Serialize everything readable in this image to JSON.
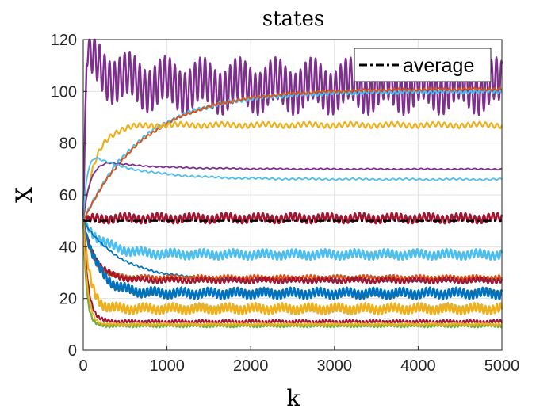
{
  "chart_data": {
    "type": "line",
    "title": "states",
    "xlabel": "k",
    "ylabel": "X",
    "xlim": [
      0,
      5000
    ],
    "ylim": [
      0,
      120
    ],
    "xticks": [
      0,
      1000,
      2000,
      3000,
      4000,
      5000
    ],
    "yticks": [
      0,
      20,
      40,
      60,
      80,
      100,
      120
    ],
    "grid": true,
    "legend": {
      "position": "top-right",
      "entries": [
        "average"
      ]
    },
    "colors": {
      "blue": "#0072BD",
      "orange": "#D95319",
      "yellow": "#EDB120",
      "purple": "#7E2F8E",
      "green": "#77AC30",
      "cyan": "#4DBEEE",
      "maroon": "#A2142F",
      "average": "#000000"
    },
    "series": [
      {
        "color": "purple",
        "start": 50,
        "t": 15,
        "settle": 102,
        "peak": 114,
        "amp": 8,
        "period": 60,
        "width": 2.4,
        "shape": "spike"
      },
      {
        "color": "cyan",
        "start": 50,
        "t": 700,
        "settle": 100,
        "amp": 0.6,
        "period": 60,
        "width": 2.2,
        "shape": "exp"
      },
      {
        "color": "orange",
        "start": 50,
        "t": 750,
        "settle": 101,
        "amp": 0.4,
        "period": 60,
        "width": 2.0,
        "shape": "exp"
      },
      {
        "color": "yellow",
        "start": 50,
        "t": 150,
        "settle": 87,
        "peak": 85,
        "amp": 0.9,
        "period": 70,
        "width": 2.2,
        "shape": "exp"
      },
      {
        "color": "purple",
        "start": 50,
        "t": 200,
        "settle": 70,
        "peak": 73,
        "amp": 0.2,
        "period": 80,
        "width": 1.8,
        "shape": "overshoot"
      },
      {
        "color": "cyan",
        "start": 50,
        "t": 100,
        "settle": 66,
        "peak": 75,
        "amp": 0.3,
        "period": 80,
        "width": 1.8,
        "shape": "overshoot"
      },
      {
        "color": "maroon",
        "start": 50,
        "t": 100,
        "settle": 51,
        "amp": 1.5,
        "period": 55,
        "width": 2.6,
        "shape": "exp"
      },
      {
        "color": "cyan",
        "start": 50,
        "t": 250,
        "settle": 37,
        "amp": 1.5,
        "period": 50,
        "width": 2.6,
        "shape": "exp"
      },
      {
        "color": "blue",
        "start": 50,
        "t": 450,
        "settle": 27,
        "amp": 0.3,
        "period": 60,
        "width": 1.8,
        "shape": "exp"
      },
      {
        "color": "orange",
        "start": 50,
        "t": 120,
        "settle": 28,
        "amp": 0.8,
        "period": 45,
        "width": 2.2,
        "shape": "exp"
      },
      {
        "color": "maroon",
        "start": 50,
        "t": 150,
        "settle": 27,
        "amp": 0.9,
        "period": 50,
        "width": 2.2,
        "shape": "exp"
      },
      {
        "color": "blue",
        "start": 50,
        "t": 180,
        "settle": 22,
        "amp": 1.6,
        "period": 45,
        "width": 2.6,
        "shape": "exp"
      },
      {
        "color": "yellow",
        "start": 50,
        "t": 80,
        "settle": 16,
        "amp": 1.6,
        "period": 45,
        "width": 2.6,
        "shape": "exp"
      },
      {
        "color": "maroon",
        "start": 50,
        "t": 60,
        "settle": 11,
        "amp": 0.6,
        "period": 40,
        "width": 2.0,
        "shape": "exp"
      },
      {
        "color": "green",
        "start": 50,
        "t": 40,
        "settle": 9.5,
        "amp": 0.5,
        "period": 40,
        "width": 2.2,
        "shape": "exp"
      },
      {
        "color": "yellow",
        "start": 50,
        "t": 50,
        "settle": 10,
        "amp": 0.4,
        "period": 40,
        "width": 1.8,
        "shape": "exp"
      }
    ],
    "average": {
      "name": "average",
      "value": 50,
      "style": "dash-dot"
    }
  }
}
